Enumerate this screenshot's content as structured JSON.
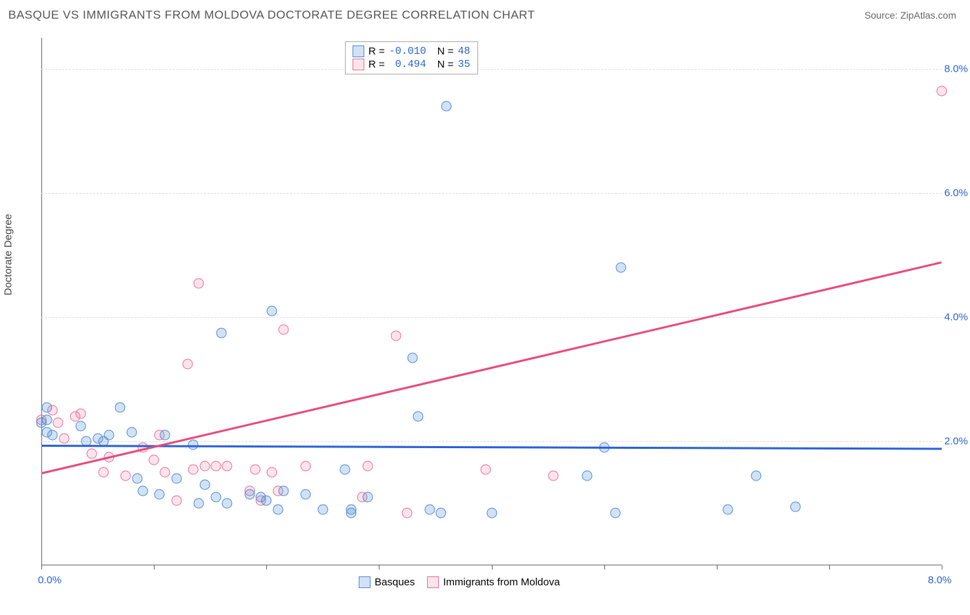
{
  "title": "BASQUE VS IMMIGRANTS FROM MOLDOVA DOCTORATE DEGREE CORRELATION CHART",
  "source": "Source: ZipAtlas.com",
  "ylabel": "Doctorate Degree",
  "chart": {
    "type": "scatter",
    "xlim": [
      0,
      8.0
    ],
    "ylim": [
      0,
      8.5
    ],
    "xticks": [
      0,
      1,
      2,
      3,
      4,
      5,
      6,
      7,
      8
    ],
    "xtick_labels": {
      "0": "0.0%",
      "8": "8.0%"
    },
    "yticks": [
      2,
      4,
      6,
      8
    ],
    "ytick_labels": [
      "2.0%",
      "4.0%",
      "6.0%",
      "8.0%"
    ],
    "grid_color": "#dddddd",
    "background_color": "#ffffff",
    "axis_color": "#666666",
    "series": {
      "blue": {
        "label": "Basques",
        "R": "-0.010",
        "N": "48",
        "color_fill": "rgba(77,138,216,0.25)",
        "color_stroke": "#4d8ad8",
        "trend": {
          "x1": 0,
          "y1": 1.95,
          "x2": 8.0,
          "y2": 1.9,
          "color": "#2962d9"
        },
        "points": [
          [
            0.05,
            2.55
          ],
          [
            0.05,
            2.35
          ],
          [
            0.0,
            2.3
          ],
          [
            0.05,
            2.15
          ],
          [
            0.1,
            2.1
          ],
          [
            0.4,
            2.0
          ],
          [
            0.5,
            2.05
          ],
          [
            0.6,
            2.1
          ],
          [
            0.55,
            2.0
          ],
          [
            0.7,
            2.55
          ],
          [
            0.8,
            2.15
          ],
          [
            0.85,
            1.4
          ],
          [
            0.9,
            1.2
          ],
          [
            1.1,
            2.1
          ],
          [
            1.2,
            1.4
          ],
          [
            1.35,
            1.95
          ],
          [
            1.4,
            1.0
          ],
          [
            1.45,
            1.3
          ],
          [
            1.55,
            1.1
          ],
          [
            1.6,
            3.75
          ],
          [
            1.65,
            1.0
          ],
          [
            1.85,
            1.15
          ],
          [
            1.95,
            1.1
          ],
          [
            2.0,
            1.05
          ],
          [
            2.05,
            4.1
          ],
          [
            2.1,
            0.9
          ],
          [
            2.15,
            1.2
          ],
          [
            2.35,
            1.15
          ],
          [
            2.5,
            0.9
          ],
          [
            2.7,
            1.55
          ],
          [
            2.75,
            0.9
          ],
          [
            2.75,
            0.85
          ],
          [
            2.9,
            1.1
          ],
          [
            3.3,
            3.35
          ],
          [
            3.35,
            2.4
          ],
          [
            3.45,
            0.9
          ],
          [
            3.55,
            0.85
          ],
          [
            3.6,
            7.4
          ],
          [
            4.0,
            0.85
          ],
          [
            5.0,
            1.9
          ],
          [
            5.1,
            0.85
          ],
          [
            5.15,
            4.8
          ],
          [
            4.85,
            1.45
          ],
          [
            6.1,
            0.9
          ],
          [
            6.35,
            1.45
          ],
          [
            6.7,
            0.95
          ],
          [
            1.05,
            1.15
          ],
          [
            0.35,
            2.25
          ]
        ]
      },
      "pink": {
        "label": "Immigrants from Moldova",
        "R": "0.494",
        "N": "35",
        "color_fill": "rgba(237,108,148,0.18)",
        "color_stroke": "#ed6c94",
        "trend": {
          "x1": 0,
          "y1": 1.5,
          "x2": 8.0,
          "y2": 4.9,
          "color": "#e84a7a"
        },
        "points": [
          [
            0.0,
            2.35
          ],
          [
            0.1,
            2.5
          ],
          [
            0.15,
            2.3
          ],
          [
            0.2,
            2.05
          ],
          [
            0.3,
            2.4
          ],
          [
            0.35,
            2.45
          ],
          [
            0.45,
            1.8
          ],
          [
            0.55,
            1.5
          ],
          [
            0.6,
            1.75
          ],
          [
            0.75,
            1.45
          ],
          [
            0.9,
            1.9
          ],
          [
            1.0,
            1.7
          ],
          [
            1.05,
            2.1
          ],
          [
            1.1,
            1.5
          ],
          [
            1.2,
            1.05
          ],
          [
            1.3,
            3.25
          ],
          [
            1.35,
            1.55
          ],
          [
            1.4,
            4.55
          ],
          [
            1.45,
            1.6
          ],
          [
            1.55,
            1.6
          ],
          [
            1.65,
            1.6
          ],
          [
            1.85,
            1.2
          ],
          [
            1.9,
            1.55
          ],
          [
            1.95,
            1.05
          ],
          [
            2.05,
            1.5
          ],
          [
            2.1,
            1.2
          ],
          [
            2.15,
            3.8
          ],
          [
            2.35,
            1.6
          ],
          [
            2.85,
            1.1
          ],
          [
            2.9,
            1.6
          ],
          [
            3.15,
            3.7
          ],
          [
            3.25,
            0.85
          ],
          [
            3.95,
            1.55
          ],
          [
            4.55,
            1.45
          ],
          [
            8.0,
            7.65
          ]
        ]
      }
    }
  },
  "legend_top": {
    "r_label": "R =",
    "n_label": "N ="
  }
}
